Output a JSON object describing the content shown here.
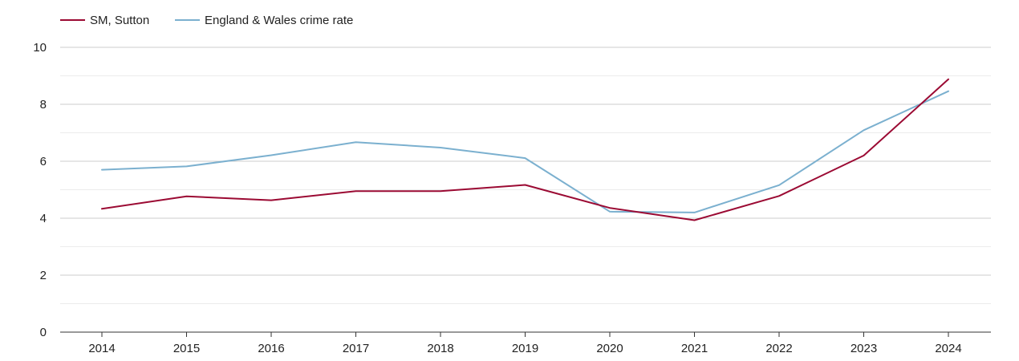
{
  "chart_data": {
    "type": "line",
    "title": "",
    "xlabel": "",
    "ylabel": "",
    "x": [
      "2014",
      "2015",
      "2016",
      "2017",
      "2018",
      "2019",
      "2020",
      "2021",
      "2022",
      "2023",
      "2024"
    ],
    "ylim": [
      0,
      10
    ],
    "yticks": [
      "0",
      "2",
      "4",
      "6",
      "8",
      "10"
    ],
    "grid": true,
    "legend_position": "top-left",
    "series": [
      {
        "name": "SM, Sutton",
        "color": "#9b0a33",
        "values": [
          4.33,
          4.77,
          4.63,
          4.95,
          4.95,
          5.17,
          4.36,
          3.93,
          4.78,
          6.2,
          8.88
        ]
      },
      {
        "name": "England & Wales crime rate",
        "color": "#7bb0cf",
        "values": [
          5.7,
          5.82,
          6.21,
          6.67,
          6.48,
          6.11,
          4.23,
          4.2,
          5.16,
          7.09,
          8.46
        ]
      }
    ]
  }
}
